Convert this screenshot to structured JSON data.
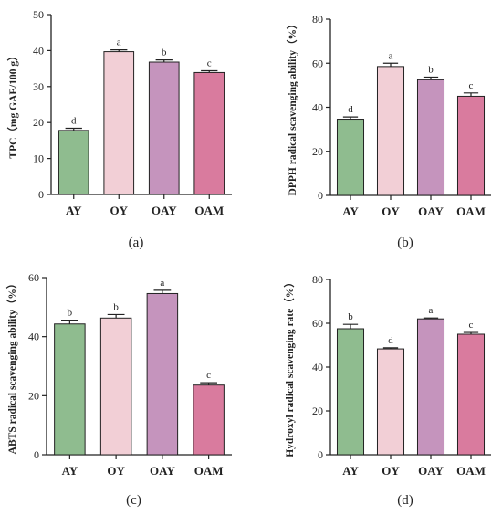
{
  "chart_data": [
    {
      "type": "bar",
      "panel_label": "(a)",
      "ylabel": "TPC（mg GAE/100 g）",
      "ylim": [
        0,
        50
      ],
      "yticks": [
        0,
        10,
        20,
        30,
        40,
        50
      ],
      "categories": [
        "AY",
        "OY",
        "OAY",
        "OAM"
      ],
      "values": [
        17.8,
        39.7,
        36.8,
        33.9
      ],
      "errors": [
        0.6,
        0.5,
        0.6,
        0.5
      ],
      "significance": [
        "d",
        "a",
        "b",
        "c"
      ]
    },
    {
      "type": "bar",
      "panel_label": "(b)",
      "ylabel": "DPPH radical scavenging ability（%）",
      "ylim": [
        0,
        80
      ],
      "yticks": [
        0,
        20,
        40,
        60,
        80
      ],
      "categories": [
        "AY",
        "OY",
        "OAY",
        "OAM"
      ],
      "values": [
        34.6,
        58.5,
        52.5,
        45.0
      ],
      "errors": [
        1.0,
        1.5,
        1.2,
        1.5
      ],
      "significance": [
        "d",
        "a",
        "b",
        "c"
      ]
    },
    {
      "type": "bar",
      "panel_label": "(c)",
      "ylabel": "ABTS radical scavenging ability（%）",
      "ylim": [
        0,
        60
      ],
      "yticks": [
        0,
        20,
        40,
        60
      ],
      "categories": [
        "AY",
        "OY",
        "OAY",
        "OAM"
      ],
      "values": [
        44.3,
        46.3,
        54.6,
        23.6
      ],
      "errors": [
        1.3,
        1.2,
        1.1,
        0.8
      ],
      "significance": [
        "b",
        "b",
        "a",
        "c"
      ]
    },
    {
      "type": "bar",
      "panel_label": "(d)",
      "ylabel": "Hydroxyl radical scavenging rate（%）",
      "ylim": [
        0,
        80
      ],
      "yticks": [
        0,
        20,
        40,
        60,
        80
      ],
      "categories": [
        "AY",
        "OY",
        "OAY",
        "OAM"
      ],
      "values": [
        57.5,
        48.3,
        62.0,
        55.0
      ],
      "errors": [
        2.0,
        0.5,
        0.4,
        0.8
      ],
      "significance": [
        "b",
        "d",
        "a",
        "c"
      ]
    }
  ],
  "colors": {
    "bars": [
      "#8fbc8f",
      "#f2cfd6",
      "#c594bd",
      "#d97b9e"
    ],
    "axis": "#222222"
  }
}
